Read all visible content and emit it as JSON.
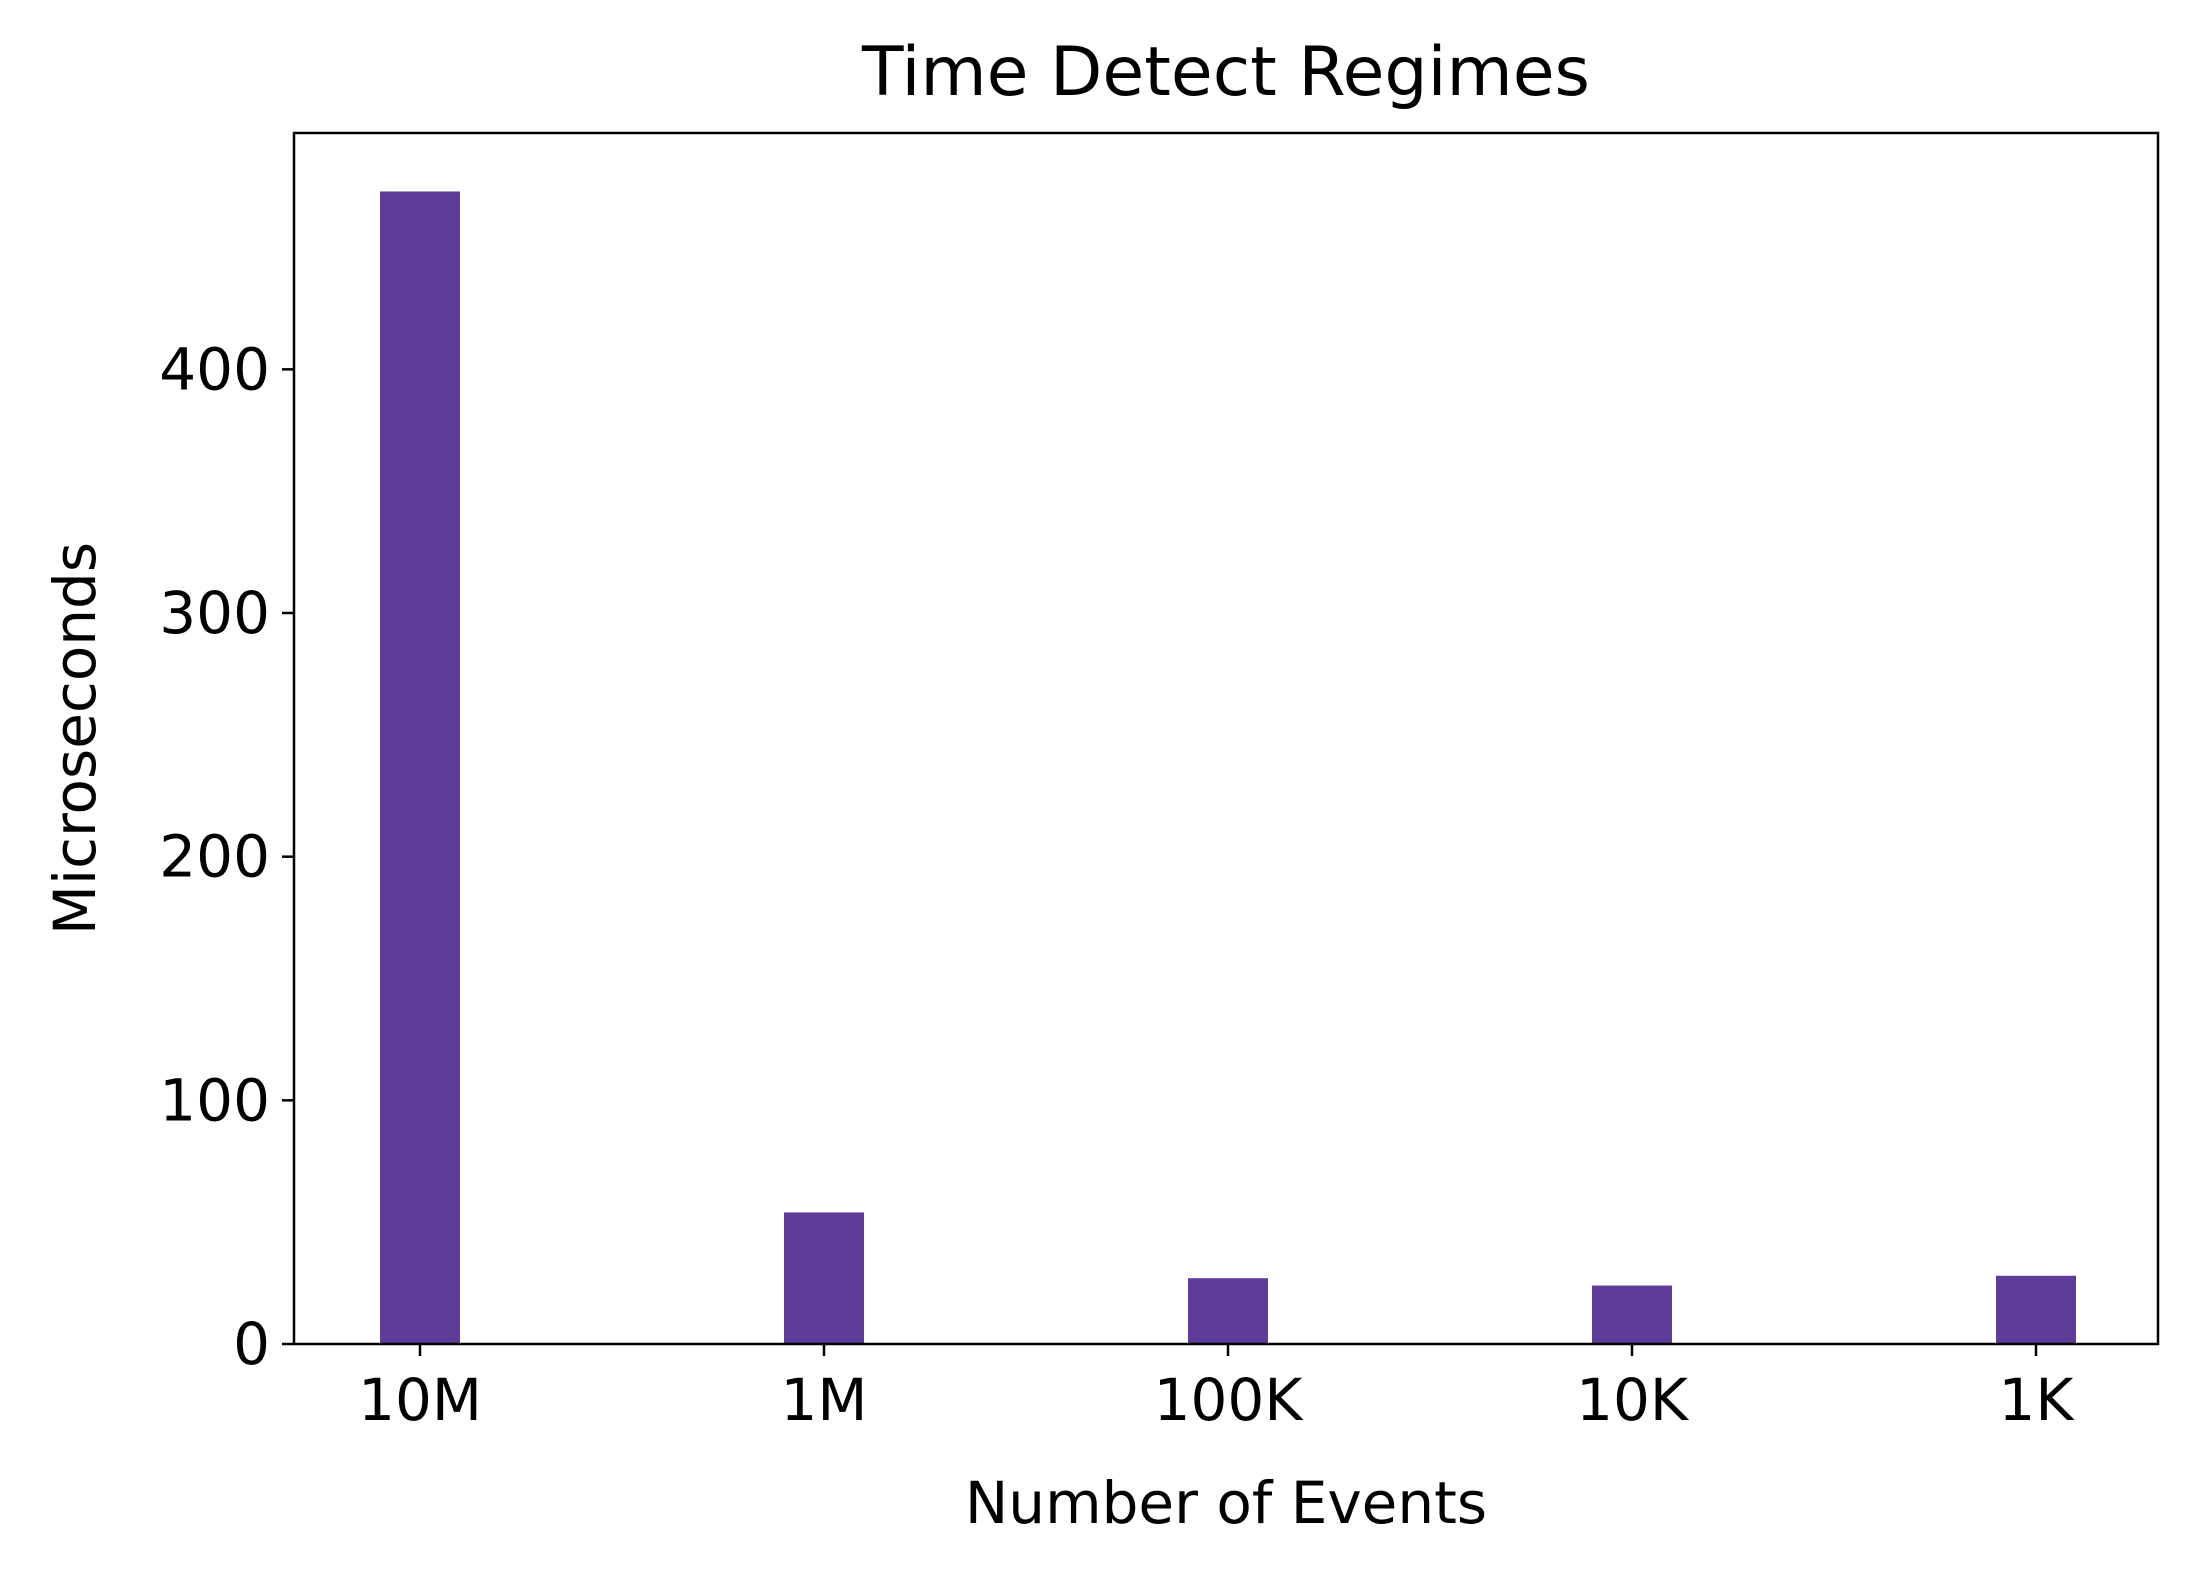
{
  "chart_data": {
    "type": "bar",
    "title": "Time Detect Regimes",
    "xlabel": "Number of Events",
    "ylabel": "Microseconds",
    "categories": [
      "10M",
      "1M",
      "100K",
      "10K",
      "1K"
    ],
    "values": [
      473,
      54,
      27,
      24,
      28
    ],
    "ylim": [
      0,
      497
    ],
    "yticks": [
      0,
      100,
      200,
      300,
      400
    ],
    "grid": false,
    "legend": "none",
    "bar_color": "#5e3c99"
  }
}
